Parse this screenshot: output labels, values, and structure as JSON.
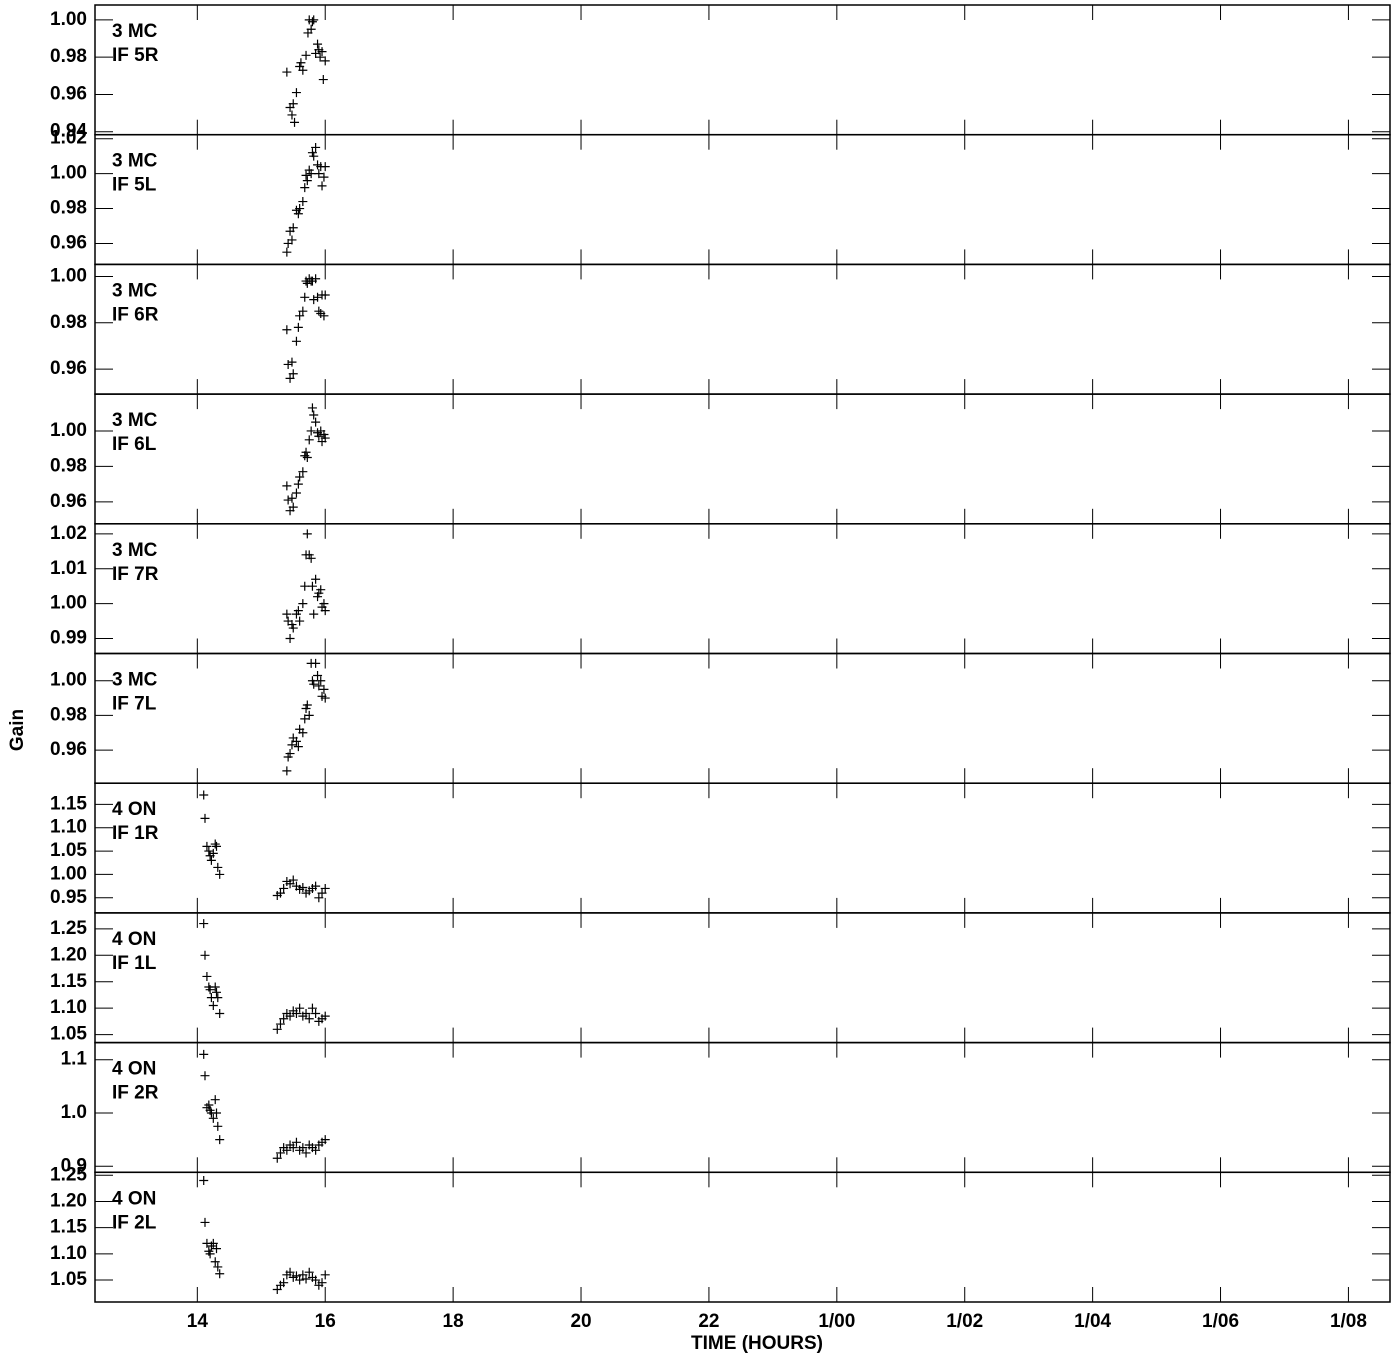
{
  "xlabel": "TIME (HOURS)",
  "ylabel": "Gain",
  "xlim": [
    12.4,
    32.65
  ],
  "xticks": [
    14,
    16,
    18,
    20,
    22,
    {
      "value": 24,
      "label": "1/00"
    },
    {
      "value": 26,
      "label": "1/02"
    },
    {
      "value": 28,
      "label": "1/04"
    },
    {
      "value": 30,
      "label": "1/06"
    },
    {
      "value": 32,
      "label": "1/08"
    }
  ],
  "chart_data": [
    {
      "type": "scatter",
      "annotations": [
        "3 MC",
        "IF 5R"
      ],
      "color": "#000000",
      "ylim": [
        0.9384,
        1.008
      ],
      "yticks": [
        0.94,
        0.96,
        0.98,
        {
          "value": 1,
          "label": "1.00"
        }
      ],
      "x": [
        15.4,
        15.45,
        15.48,
        15.5,
        15.52,
        15.55,
        15.6,
        15.62,
        15.65,
        15.7,
        15.73,
        15.75,
        15.78,
        15.8,
        15.82,
        15.85,
        15.88,
        15.9,
        15.92,
        15.95,
        15.97,
        16.0
      ],
      "values": [
        0.972,
        0.953,
        0.949,
        0.955,
        0.945,
        0.961,
        0.975,
        0.977,
        0.973,
        0.981,
        0.993,
        1.0,
        0.995,
        0.999,
        1.0,
        0.982,
        0.987,
        0.984,
        0.98,
        0.983,
        0.968,
        0.978
      ]
    },
    {
      "type": "scatter",
      "annotations": [
        "3 MC",
        "IF 5L"
      ],
      "color": "#000000",
      "ylim": [
        0.948,
        1.0223
      ],
      "yticks": [
        0.96,
        0.98,
        {
          "value": 1,
          "label": "1.00"
        },
        1.02
      ],
      "x": [
        15.4,
        15.42,
        15.45,
        15.48,
        15.5,
        15.55,
        15.58,
        15.6,
        15.65,
        15.68,
        15.7,
        15.72,
        15.75,
        15.78,
        15.8,
        15.82,
        15.85,
        15.88,
        15.9,
        15.93,
        15.95,
        15.98,
        16.0
      ],
      "values": [
        0.955,
        0.96,
        0.967,
        0.962,
        0.969,
        0.979,
        0.977,
        0.98,
        0.984,
        0.992,
        0.999,
        0.996,
        1.002,
        1.0,
        1.012,
        1.01,
        1.015,
        1.005,
        1.0,
        1.004,
        0.993,
        0.998,
        1.004
      ]
    },
    {
      "type": "scatter",
      "annotations": [
        "3 MC",
        "IF 6R"
      ],
      "color": "#000000",
      "ylim": [
        0.9492,
        1.0052
      ],
      "yticks": [
        0.96,
        0.98,
        {
          "value": 1,
          "label": "1.00"
        }
      ],
      "x": [
        15.4,
        15.42,
        15.45,
        15.48,
        15.5,
        15.55,
        15.58,
        15.6,
        15.65,
        15.68,
        15.7,
        15.72,
        15.75,
        15.78,
        15.8,
        15.82,
        15.85,
        15.88,
        15.9,
        15.93,
        15.95,
        15.98,
        16.0
      ],
      "values": [
        0.977,
        0.962,
        0.956,
        0.963,
        0.958,
        0.972,
        0.978,
        0.983,
        0.985,
        0.991,
        0.998,
        0.997,
        0.999,
        0.998,
        0.998,
        0.99,
        0.999,
        0.991,
        0.985,
        0.984,
        0.992,
        0.983,
        0.992
      ]
    },
    {
      "type": "scatter",
      "annotations": [
        "3 MC",
        "IF 6L"
      ],
      "color": "#000000",
      "ylim": [
        0.9476,
        1.0208
      ],
      "yticks": [
        0.96,
        0.98,
        {
          "value": 1,
          "label": "1.00"
        }
      ],
      "x": [
        15.4,
        15.42,
        15.45,
        15.48,
        15.5,
        15.55,
        15.58,
        15.6,
        15.65,
        15.68,
        15.7,
        15.72,
        15.75,
        15.78,
        15.8,
        15.82,
        15.85,
        15.88,
        15.9,
        15.93,
        15.95,
        15.98,
        16.0
      ],
      "values": [
        0.969,
        0.961,
        0.955,
        0.962,
        0.957,
        0.965,
        0.97,
        0.974,
        0.977,
        0.986,
        0.988,
        0.985,
        0.995,
        1.0,
        1.013,
        1.009,
        1.005,
        0.999,
        0.997,
        1.0,
        0.994,
        0.998,
        0.996
      ]
    },
    {
      "type": "scatter",
      "annotations": [
        "3 MC",
        "IF 7R"
      ],
      "color": "#000000",
      "ylim": [
        0.9857,
        1.0229
      ],
      "yticks": [
        0.99,
        {
          "value": 1,
          "label": "1.00"
        },
        1.01,
        1.02
      ],
      "x": [
        15.4,
        15.42,
        15.45,
        15.48,
        15.5,
        15.55,
        15.58,
        15.6,
        15.65,
        15.68,
        15.7,
        15.72,
        15.75,
        15.78,
        15.8,
        15.82,
        15.85,
        15.88,
        15.9,
        15.93,
        15.95,
        15.98,
        16.0
      ],
      "values": [
        0.997,
        0.995,
        0.99,
        0.994,
        0.993,
        0.997,
        0.998,
        0.995,
        1.0,
        1.005,
        1.014,
        1.02,
        1.014,
        1.013,
        1.005,
        0.997,
        1.007,
        1.002,
        1.003,
        1.004,
        0.999,
        1.0,
        0.998
      ]
    },
    {
      "type": "scatter",
      "annotations": [
        "3 MC",
        "IF 7L"
      ],
      "color": "#000000",
      "ylim": [
        0.9409,
        1.0157
      ],
      "yticks": [
        0.96,
        0.98,
        {
          "value": 1,
          "label": "1.00"
        }
      ],
      "x": [
        15.4,
        15.42,
        15.45,
        15.48,
        15.5,
        15.55,
        15.58,
        15.6,
        15.65,
        15.68,
        15.7,
        15.72,
        15.75,
        15.78,
        15.8,
        15.82,
        15.85,
        15.88,
        15.9,
        15.93,
        15.95,
        15.98,
        16.0
      ],
      "values": [
        0.948,
        0.956,
        0.958,
        0.963,
        0.967,
        0.965,
        0.962,
        0.972,
        0.97,
        0.978,
        0.984,
        0.986,
        0.98,
        1.01,
        1.0,
        0.998,
        1.01,
        1.003,
        0.997,
        1.0,
        0.991,
        0.995,
        0.99
      ]
    },
    {
      "type": "scatter",
      "annotations": [
        "4 ON",
        "IF 1R"
      ],
      "color": "#000000",
      "ylim": [
        0.9177,
        1.1952
      ],
      "yticks": [
        0.95,
        {
          "value": 1,
          "label": "1.00"
        },
        1.05,
        {
          "value": 1.1,
          "label": "1.10"
        },
        1.15
      ],
      "x": [
        14.1,
        14.12,
        14.15,
        14.18,
        14.2,
        14.22,
        14.25,
        14.28,
        14.3,
        14.32,
        14.35,
        15.25,
        15.3,
        15.35,
        15.4,
        15.45,
        15.5,
        15.55,
        15.6,
        15.65,
        15.7,
        15.75,
        15.8,
        15.85,
        15.9,
        15.95,
        16.0
      ],
      "values": [
        1.17,
        1.12,
        1.06,
        1.05,
        1.04,
        1.03,
        1.045,
        1.065,
        1.06,
        1.015,
        1.0,
        0.955,
        0.96,
        0.97,
        0.985,
        0.98,
        0.988,
        0.975,
        0.968,
        0.972,
        0.96,
        0.965,
        0.97,
        0.975,
        0.95,
        0.96,
        0.97
      ]
    },
    {
      "type": "scatter",
      "annotations": [
        "4 ON",
        "IF 1L"
      ],
      "color": "#000000",
      "ylim": [
        1.0349,
        1.2802
      ],
      "yticks": [
        1.05,
        {
          "value": 1.1,
          "label": "1.10"
        },
        1.15,
        {
          "value": 1.2,
          "label": "1.20"
        },
        1.25
      ],
      "x": [
        14.1,
        14.12,
        14.15,
        14.18,
        14.2,
        14.22,
        14.25,
        14.28,
        14.3,
        14.32,
        14.35,
        15.25,
        15.3,
        15.35,
        15.4,
        15.45,
        15.5,
        15.55,
        15.6,
        15.65,
        15.7,
        15.75,
        15.8,
        15.85,
        15.9,
        15.95,
        16.0
      ],
      "values": [
        1.26,
        1.2,
        1.16,
        1.14,
        1.135,
        1.12,
        1.105,
        1.14,
        1.13,
        1.12,
        1.09,
        1.06,
        1.07,
        1.08,
        1.09,
        1.085,
        1.095,
        1.09,
        1.1,
        1.085,
        1.09,
        1.08,
        1.1,
        1.09,
        1.075,
        1.08,
        1.085
      ]
    },
    {
      "type": "scatter",
      "annotations": [
        "4 ON",
        "IF 2R"
      ],
      "color": "#000000",
      "ylim": [
        0.8887,
        1.1321
      ],
      "yticks": [
        0.9,
        {
          "value": 1,
          "label": "1.0"
        },
        1.1
      ],
      "x": [
        14.1,
        14.12,
        14.15,
        14.18,
        14.2,
        14.22,
        14.25,
        14.28,
        14.3,
        14.32,
        14.35,
        15.25,
        15.3,
        15.35,
        15.4,
        15.45,
        15.5,
        15.55,
        15.6,
        15.65,
        15.7,
        15.75,
        15.8,
        15.85,
        15.9,
        15.95,
        16.0
      ],
      "values": [
        1.11,
        1.07,
        1.01,
        1.015,
        1.005,
        1.0,
        0.99,
        1.025,
        1.0,
        0.975,
        0.95,
        0.915,
        0.925,
        0.935,
        0.93,
        0.94,
        0.935,
        0.945,
        0.93,
        0.935,
        0.925,
        0.94,
        0.935,
        0.93,
        0.94,
        0.945,
        0.95
      ]
    },
    {
      "type": "scatter",
      "annotations": [
        "4 ON",
        "IF 2L"
      ],
      "color": "#000000",
      "ylim": [
        1.0081,
        1.2557
      ],
      "yticks": [
        1.05,
        {
          "value": 1.1,
          "label": "1.10"
        },
        1.15,
        {
          "value": 1.2,
          "label": "1.20"
        },
        1.25
      ],
      "x": [
        14.1,
        14.12,
        14.15,
        14.18,
        14.2,
        14.22,
        14.25,
        14.28,
        14.3,
        14.32,
        14.35,
        15.25,
        15.3,
        15.35,
        15.4,
        15.45,
        15.5,
        15.55,
        15.6,
        15.65,
        15.7,
        15.75,
        15.8,
        15.85,
        15.9,
        15.95,
        16.0
      ],
      "values": [
        1.24,
        1.16,
        1.12,
        1.105,
        1.1,
        1.115,
        1.12,
        1.085,
        1.11,
        1.075,
        1.062,
        1.032,
        1.04,
        1.045,
        1.06,
        1.065,
        1.055,
        1.058,
        1.05,
        1.06,
        1.052,
        1.065,
        1.055,
        1.05,
        1.04,
        1.045,
        1.06
      ]
    }
  ]
}
